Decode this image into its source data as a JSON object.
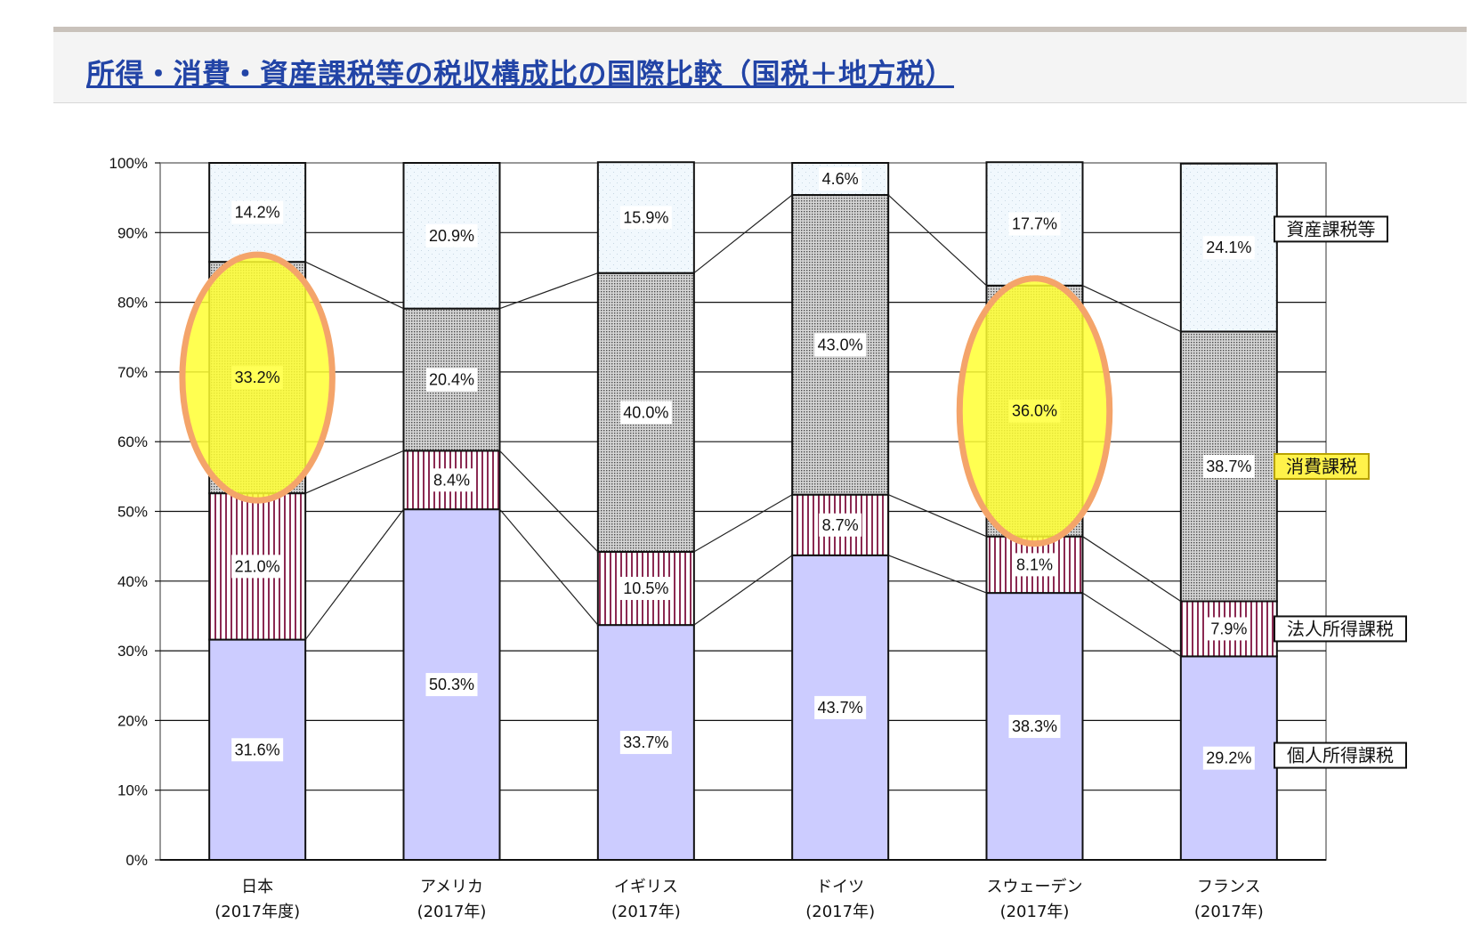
{
  "header": {
    "title": "所得・消費・資産課税等の税収構成比の国際比較（国税＋地方税）"
  },
  "chart_data": {
    "type": "bar",
    "stacked": true,
    "ylim": [
      0,
      100
    ],
    "y_ticks": [
      "0%",
      "10%",
      "20%",
      "30%",
      "40%",
      "50%",
      "60%",
      "70%",
      "80%",
      "90%",
      "100%"
    ],
    "grid": true,
    "categories": [
      {
        "name": "日本",
        "year": "(2017年度)"
      },
      {
        "name": "アメリカ",
        "year": "(2017年)"
      },
      {
        "name": "イギリス",
        "year": "(2017年)"
      },
      {
        "name": "ドイツ",
        "year": "(2017年)"
      },
      {
        "name": "スウェーデン",
        "year": "(2017年)"
      },
      {
        "name": "フランス",
        "year": "(2017年)"
      }
    ],
    "series": [
      {
        "name": "個人所得課税",
        "values": [
          31.6,
          50.3,
          33.7,
          43.7,
          38.3,
          29.2
        ],
        "labels": [
          "31.6%",
          "50.3%",
          "33.7%",
          "43.7%",
          "38.3%",
          "29.2%"
        ],
        "color": "#ccccff",
        "pattern": "solid"
      },
      {
        "name": "法人所得課税",
        "values": [
          21.0,
          8.4,
          10.5,
          8.7,
          8.1,
          7.9
        ],
        "labels": [
          "21.0%",
          "8.4%",
          "10.5%",
          "8.7%",
          "8.1%",
          "7.9%"
        ],
        "color": "#8b2a52",
        "pattern": "vertical-lines"
      },
      {
        "name": "消費課税",
        "values": [
          33.2,
          20.4,
          40.0,
          43.0,
          36.0,
          38.7
        ],
        "labels": [
          "33.2%",
          "20.4%",
          "40.0%",
          "43.0%",
          "36.0%",
          "38.7%"
        ],
        "color": "#666666",
        "pattern": "dots"
      },
      {
        "name": "資産課税等",
        "values": [
          14.2,
          20.9,
          15.9,
          4.6,
          17.7,
          24.1
        ],
        "labels": [
          "14.2%",
          "20.9%",
          "15.9%",
          "4.6%",
          "17.7%",
          "24.1%"
        ],
        "color": "#eaf4fb",
        "pattern": "light-dots"
      }
    ],
    "legend": [
      "資産課税等",
      "消費課税",
      "法人所得課税",
      "個人所得課税"
    ],
    "legend_placement": "right",
    "highlighted_legend": "消費課税",
    "highlights": [
      {
        "category": "日本",
        "series": "消費課税",
        "color": "#ffff33",
        "ring_color": "#f4a46a"
      },
      {
        "category": "スウェーデン",
        "series": "消費課税",
        "color": "#ffff33",
        "ring_color": "#f4a46a"
      }
    ]
  }
}
